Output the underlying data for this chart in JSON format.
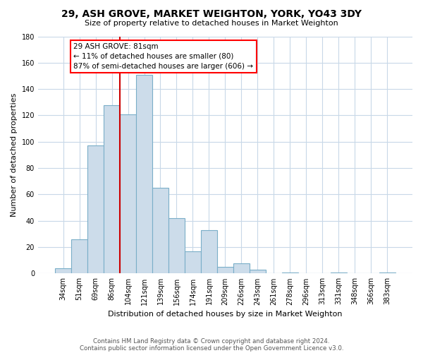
{
  "title": "29, ASH GROVE, MARKET WEIGHTON, YORK, YO43 3DY",
  "subtitle": "Size of property relative to detached houses in Market Weighton",
  "xlabel": "Distribution of detached houses by size in Market Weighton",
  "ylabel": "Number of detached properties",
  "bar_labels": [
    "34sqm",
    "51sqm",
    "69sqm",
    "86sqm",
    "104sqm",
    "121sqm",
    "139sqm",
    "156sqm",
    "174sqm",
    "191sqm",
    "209sqm",
    "226sqm",
    "243sqm",
    "261sqm",
    "278sqm",
    "296sqm",
    "313sqm",
    "331sqm",
    "348sqm",
    "366sqm",
    "383sqm"
  ],
  "bar_values": [
    4,
    26,
    97,
    128,
    121,
    151,
    65,
    42,
    17,
    33,
    5,
    8,
    3,
    0,
    1,
    0,
    0,
    1,
    0,
    0,
    1
  ],
  "bar_color": "#ccdcea",
  "bar_edgecolor": "#7aaec8",
  "vline_x": 3.5,
  "vline_color": "#cc0000",
  "ylim": [
    0,
    180
  ],
  "yticks": [
    0,
    20,
    40,
    60,
    80,
    100,
    120,
    140,
    160,
    180
  ],
  "annotation_box_text": "29 ASH GROVE: 81sqm\n← 11% of detached houses are smaller (80)\n87% of semi-detached houses are larger (606) →",
  "footer_line1": "Contains HM Land Registry data © Crown copyright and database right 2024.",
  "footer_line2": "Contains public sector information licensed under the Open Government Licence v3.0.",
  "background_color": "#ffffff",
  "grid_color": "#c8d8e8"
}
